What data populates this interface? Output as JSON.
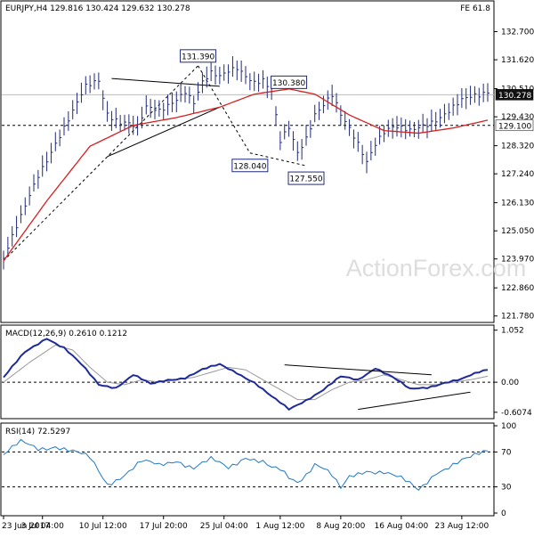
{
  "chart_data": [
    {
      "id": "main",
      "type": "line",
      "header": "EURJPY,H4  129.816 130.424 129.632 130.278",
      "fe_label": "FE 61.8",
      "watermark": "ActionForex.com",
      "ylim": [
        121.6,
        133.3
      ],
      "y_ticks": [
        "132.700",
        "131.620",
        "130.510",
        "129.430",
        "128.320",
        "127.240",
        "126.130",
        "125.050",
        "123.970",
        "122.860",
        "121.780"
      ],
      "y_tick_values": [
        132.7,
        131.62,
        130.51,
        129.43,
        128.32,
        127.24,
        126.13,
        125.05,
        123.97,
        122.86,
        121.78
      ],
      "last_price": 130.278,
      "last_price_label": "130.278",
      "support_level": 129.1,
      "support_label": "129.100",
      "resistance_level": 130.278,
      "x_labels": [
        "23 Jun 2017",
        "3 Jul 04:00",
        "10 Jul 12:00",
        "17 Jul 20:00",
        "25 Jul 04:00",
        "1 Aug 12:00",
        "8 Aug 20:00",
        "16 Aug 04:00",
        "23 Aug 12:00"
      ],
      "x_label_index": [
        0,
        9,
        23,
        37,
        51,
        64,
        78,
        92,
        106
      ],
      "bars_count": 113,
      "price_path_idx": [
        0,
        4,
        8,
        12,
        16,
        19,
        22,
        24,
        27,
        28,
        31,
        33,
        36,
        38,
        40,
        42,
        44,
        46,
        48,
        50,
        52,
        54,
        56,
        58,
        60,
        62,
        64,
        66,
        68,
        70,
        72,
        74,
        76,
        78,
        80,
        82,
        84,
        86,
        88,
        90,
        92,
        94,
        96,
        98,
        100,
        102,
        104,
        106,
        108,
        110,
        112
      ],
      "price_path_val": [
        124.0,
        125.5,
        127.2,
        128.5,
        129.6,
        130.5,
        130.8,
        129.6,
        129.3,
        129.3,
        129.0,
        129.7,
        129.6,
        129.9,
        130.2,
        130.5,
        130.0,
        130.7,
        131.0,
        130.9,
        131.2,
        131.4,
        131.1,
        130.8,
        130.8,
        130.3,
        128.4,
        129.0,
        128.1,
        128.7,
        129.6,
        129.9,
        130.2,
        129.4,
        128.9,
        128.4,
        127.8,
        128.5,
        128.9,
        129.0,
        128.9,
        128.8,
        129.0,
        129.2,
        129.4,
        129.6,
        129.8,
        130.0,
        130.1,
        130.2,
        130.4
      ],
      "ma_path_idx": [
        0,
        10,
        20,
        30,
        40,
        50,
        58,
        66,
        72,
        80,
        88,
        96,
        104,
        112
      ],
      "ma_path_val": [
        123.9,
        126.2,
        128.3,
        129.1,
        129.4,
        129.8,
        130.3,
        130.5,
        130.3,
        129.5,
        128.9,
        128.8,
        129.0,
        129.3
      ],
      "annotations": [
        {
          "label": "131.390",
          "index": 45,
          "price": 131.39
        },
        {
          "label": "130.380",
          "index": 66,
          "price": 130.38
        },
        {
          "label": "128.040",
          "index": 57,
          "price": 128.04
        },
        {
          "label": "127.550",
          "index": 70,
          "price": 127.55
        }
      ],
      "colors": {
        "price": "#1f2a7a",
        "ma": "#d81e1e",
        "trend": "#000000",
        "annotation_box": "#1f2a7a",
        "badge_bg": "#111111",
        "badge_text": "#ffffff"
      }
    },
    {
      "id": "macd",
      "type": "line",
      "label": "MACD(12,26,9) 0.2610 0.1212",
      "ylim": [
        -0.7,
        1.1
      ],
      "y_ticks": [
        "1.052",
        "0.00",
        "-0.6074"
      ],
      "y_tick_values": [
        1.052,
        0.0,
        -0.6074
      ],
      "macd_idx": [
        0,
        5,
        10,
        14,
        18,
        22,
        26,
        30,
        34,
        38,
        42,
        46,
        50,
        54,
        58,
        62,
        66,
        70,
        74,
        78,
        82,
        86,
        90,
        94,
        98,
        102,
        106,
        110,
        112
      ],
      "macd_val": [
        0.1,
        0.6,
        0.9,
        0.7,
        0.35,
        -0.05,
        -0.1,
        0.15,
        -0.05,
        0.05,
        0.1,
        0.25,
        0.35,
        0.2,
        0.0,
        -0.3,
        -0.55,
        -0.35,
        -0.15,
        0.1,
        0.05,
        0.3,
        0.1,
        -0.15,
        -0.1,
        0.0,
        0.05,
        0.2,
        0.26
      ],
      "signal_idx": [
        0,
        6,
        12,
        16,
        20,
        24,
        28,
        32,
        36,
        40,
        44,
        48,
        52,
        56,
        60,
        64,
        68,
        72,
        76,
        80,
        84,
        88,
        92,
        96,
        100,
        104,
        108,
        112
      ],
      "signal_val": [
        0.0,
        0.4,
        0.75,
        0.65,
        0.3,
        0.0,
        -0.05,
        0.05,
        0.0,
        0.05,
        0.1,
        0.2,
        0.3,
        0.25,
        0.05,
        -0.15,
        -0.35,
        -0.35,
        -0.15,
        0.0,
        0.05,
        0.15,
        0.05,
        -0.05,
        -0.05,
        0.0,
        0.05,
        0.12
      ],
      "colors": {
        "macd": "#1f2a9a",
        "signal": "#999999"
      }
    },
    {
      "id": "rsi",
      "type": "line",
      "label": "RSI(14) 72.5297",
      "ylim": [
        0,
        100
      ],
      "y_ticks": [
        "100",
        "70",
        "30",
        "0"
      ],
      "y_tick_values": [
        100,
        70,
        30,
        0
      ],
      "rsi_idx": [
        0,
        4,
        8,
        12,
        16,
        20,
        24,
        28,
        32,
        36,
        40,
        44,
        48,
        52,
        56,
        60,
        62,
        64,
        66,
        68,
        70,
        72,
        74,
        76,
        78,
        80,
        84,
        88,
        92,
        96,
        100,
        104,
        108,
        112
      ],
      "rsi_val": [
        67,
        80,
        74,
        78,
        70,
        62,
        34,
        45,
        58,
        54,
        62,
        52,
        60,
        52,
        66,
        58,
        50,
        48,
        40,
        36,
        46,
        58,
        52,
        42,
        26,
        40,
        50,
        48,
        38,
        26,
        48,
        55,
        62,
        72.5
      ],
      "colors": {
        "rsi": "#1f78c8"
      }
    }
  ]
}
